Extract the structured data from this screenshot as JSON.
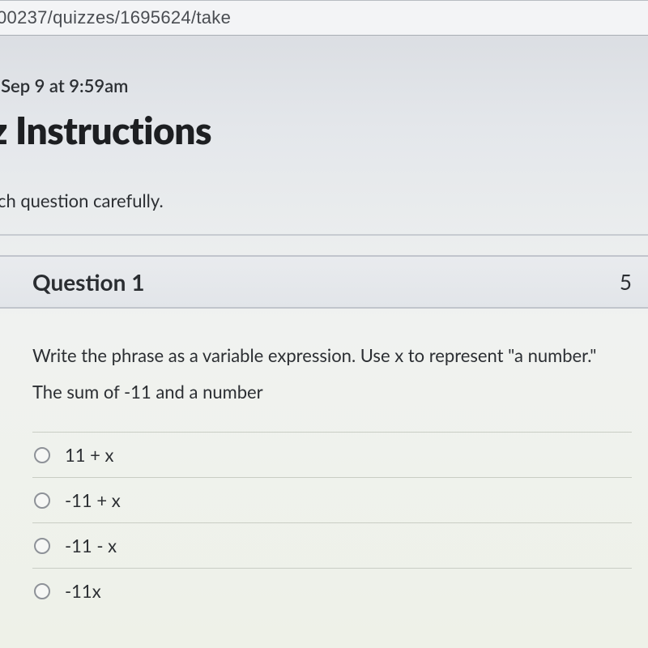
{
  "browser": {
    "url_fragment": "00237/quizzes/1695624/take"
  },
  "quiz": {
    "due_line": ": Sep 9 at 9:59am",
    "heading_fragment": "z Instructions",
    "instruction_fragment": "ach question carefully."
  },
  "question": {
    "title": "Question 1",
    "points": "5",
    "prompt_line1": "Write the phrase as a variable expression. Use x to represent \"a number.\"",
    "prompt_line2": "The sum of -11 and a number",
    "options": {
      "a": "11 + x",
      "b": "-11 + x",
      "c": "-11 - x",
      "d": "-11x"
    }
  },
  "colors": {
    "heading": "#1d1f22",
    "text": "#2c2f33",
    "border": "#c1c5cc",
    "url_bg": "#f3f4f6",
    "radio_border": "#8e9298"
  }
}
